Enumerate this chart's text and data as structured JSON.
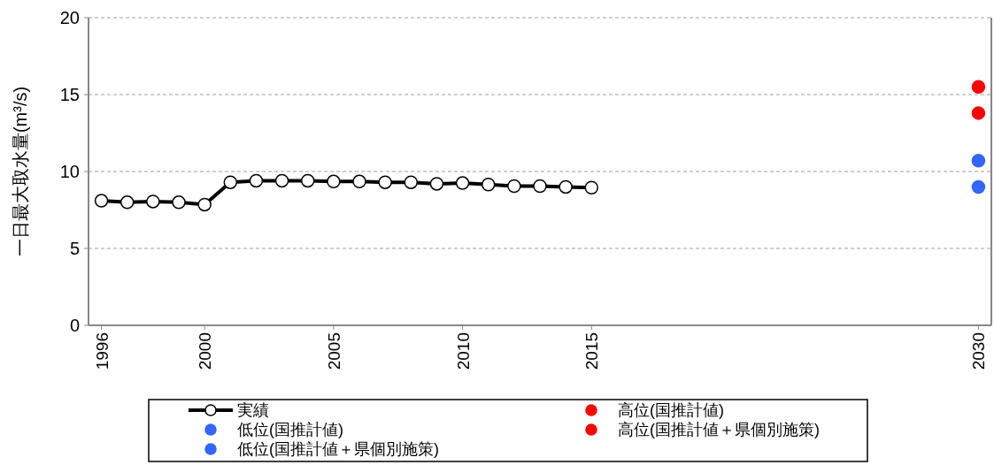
{
  "chart_data": {
    "type": "line",
    "ylabel": "一日最大取水量(m³/s)",
    "xlim": [
      1995.5,
      2030.5
    ],
    "xticks": [
      1996,
      2000,
      2005,
      2010,
      2015,
      2030
    ],
    "ylim": [
      0,
      20
    ],
    "yticks": [
      0,
      5,
      10,
      15,
      20
    ],
    "grid": "y",
    "legend": "bottom",
    "marker": "circle",
    "series": [
      {
        "name": "実績",
        "color": "#000000",
        "x": [
          1996,
          1997,
          1998,
          1999,
          2000,
          2001,
          2002,
          2003,
          2004,
          2005,
          2006,
          2007,
          2008,
          2009,
          2010,
          2011,
          2012,
          2013,
          2014,
          2015
        ],
        "values": [
          8.1,
          8.0,
          8.05,
          8.0,
          7.85,
          9.3,
          9.4,
          9.4,
          9.4,
          9.35,
          9.35,
          9.3,
          9.3,
          9.2,
          9.25,
          9.15,
          9.05,
          9.05,
          9.0,
          8.95
        ]
      },
      {
        "name": "高位(国推計値)",
        "type": "scatter",
        "color": "#ff0000",
        "x": [
          2030
        ],
        "values": [
          13.8
        ]
      },
      {
        "name": "低位(国推計値)",
        "type": "scatter",
        "color": "#3366ff",
        "x": [
          2030
        ],
        "values": [
          9.0
        ]
      },
      {
        "name": "高位(国推計値＋県個別施策)",
        "type": "scatter",
        "color": "#ff0000",
        "x": [
          2030
        ],
        "values": [
          15.5
        ]
      },
      {
        "name": "低位(国推計値＋県個別施策)",
        "type": "scatter",
        "color": "#3366ff",
        "x": [
          2030
        ],
        "values": [
          10.7
        ]
      }
    ]
  }
}
